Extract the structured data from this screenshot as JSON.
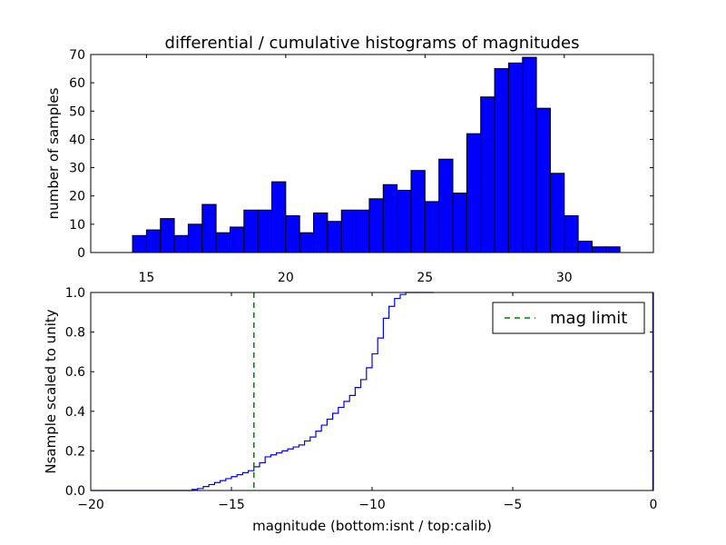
{
  "colors": {
    "bar_fill": "#0000ff",
    "bar_edge": "#000000",
    "step_line": "#0000ff",
    "limit_line": "#008000"
  },
  "chart_data": [
    {
      "type": "bar",
      "title": "differential / cumulative histograms of magnitudes",
      "ylabel": "number of samples",
      "xlim": [
        13.0,
        33.2
      ],
      "ylim": [
        0,
        70
      ],
      "xticks": [
        15,
        20,
        25,
        30
      ],
      "yticks": [
        0,
        10,
        20,
        30,
        40,
        50,
        60,
        70
      ],
      "bin_start": 14.5,
      "bin_width": 0.5,
      "values": [
        6,
        8,
        12,
        6,
        10,
        17,
        7,
        9,
        15,
        15,
        25,
        13,
        7,
        14,
        11,
        15,
        15,
        19,
        24,
        22,
        29,
        18,
        33,
        21,
        42,
        55,
        65,
        67,
        69,
        51,
        28,
        13,
        4,
        2,
        2
      ],
      "grid": false
    },
    {
      "type": "line",
      "xlabel": "magnitude (bottom:isnt / top:calib)",
      "ylabel": "Nsample scaled to unity",
      "xlim": [
        -20,
        0
      ],
      "ylim": [
        0,
        1
      ],
      "xticks": [
        -20,
        -15,
        -10,
        -5,
        0
      ],
      "yticks": [
        0.0,
        0.2,
        0.4,
        0.6,
        0.8,
        1.0
      ],
      "series": [
        {
          "step_start": -16.6,
          "step_width": 0.2,
          "values": [
            0.0,
            0.005,
            0.01,
            0.02,
            0.03,
            0.04,
            0.05,
            0.06,
            0.07,
            0.08,
            0.09,
            0.1,
            0.12,
            0.14,
            0.17,
            0.18,
            0.19,
            0.2,
            0.21,
            0.22,
            0.23,
            0.25,
            0.27,
            0.3,
            0.33,
            0.36,
            0.39,
            0.42,
            0.45,
            0.48,
            0.52,
            0.56,
            0.62,
            0.69,
            0.77,
            0.87,
            0.93,
            0.97,
            0.99,
            1.0,
            1.0,
            1.0
          ],
          "end_x": -7.8
        },
        {
          "name": "mag limit",
          "style": "dashed",
          "x": -14.2
        }
      ],
      "legend": "top-right",
      "grid": false
    }
  ]
}
